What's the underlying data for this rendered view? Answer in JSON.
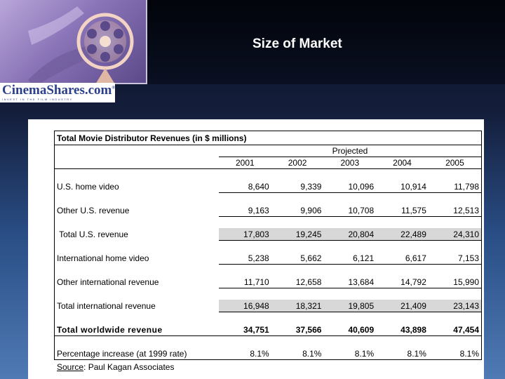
{
  "slide": {
    "title": "Size of Market"
  },
  "brand": {
    "name": "CinemaShares.com",
    "mark": "®",
    "tagline": "INVEST IN THE FILM INDUSTRY"
  },
  "table": {
    "title": "Total Movie Distributor Revenues (in $ millions)",
    "projected_label": "Projected",
    "years": [
      "2001",
      "2002",
      "2003",
      "2004",
      "2005"
    ],
    "rows": [
      {
        "label": "U.S. home video",
        "values": [
          "8,640",
          "9,339",
          "10,096",
          "10,914",
          "11,798"
        ]
      },
      {
        "label": "Other U.S. revenue",
        "values": [
          "9,163",
          "9,906",
          "10,708",
          "11,575",
          "12,513"
        ]
      },
      {
        "label": " Total U.S. revenue",
        "values": [
          "17,803",
          "19,245",
          "20,804",
          "22,489",
          "24,310"
        ]
      },
      {
        "label": "International home video",
        "values": [
          "5,238",
          "5,662",
          "6,121",
          "6,617",
          "7,153"
        ]
      },
      {
        "label": "Other international revenue",
        "values": [
          "11,710",
          "12,658",
          "13,684",
          "14,792",
          "15,990"
        ]
      },
      {
        "label": "Total international revenue",
        "values": [
          "16,948",
          "18,321",
          "19,805",
          "21,409",
          "23,143"
        ]
      },
      {
        "label": "Total worldwide revenue",
        "values": [
          "34,751",
          "37,566",
          "40,609",
          "43,898",
          "47,454"
        ]
      },
      {
        "label": "Percentage increase (at 1999 rate)",
        "values": [
          "8.1%",
          "8.1%",
          "8.1%",
          "8.1%",
          "8.1%"
        ]
      }
    ]
  },
  "source": {
    "prefix": "Source",
    "text": ": Paul Kagan Associates"
  }
}
